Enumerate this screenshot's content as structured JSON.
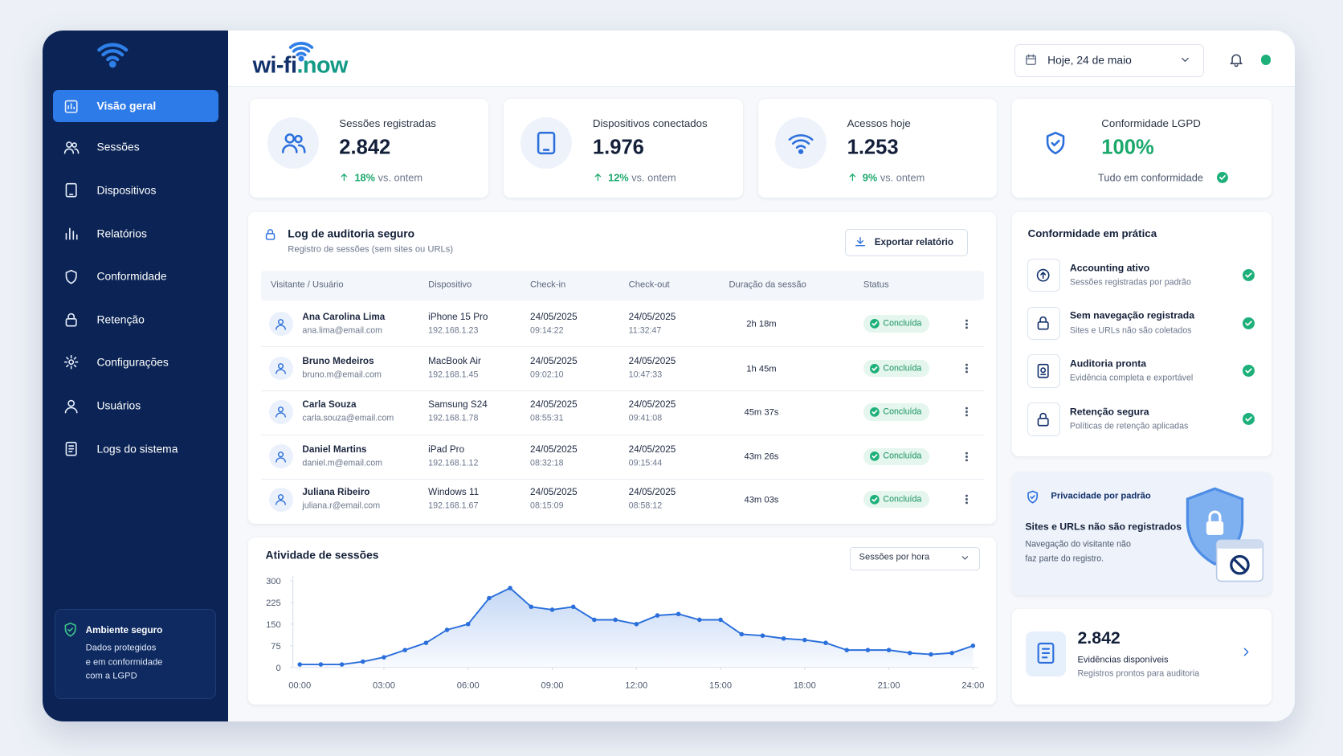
{
  "brand": {
    "logo_main": "wi-fi",
    "logo_accent": ".now"
  },
  "topbar": {
    "date": "Hoje, 24 de maio"
  },
  "sidebar": {
    "nav": [
      "Visão geral",
      "Sessões",
      "Dispositivos",
      "Relatórios",
      "Conformidade",
      "Retenção",
      "Configurações",
      "Usuários",
      "Logs do sistema"
    ],
    "secure_box": {
      "title": "Ambiente seguro",
      "lines": [
        "Dados protegidos",
        "e em conformidade",
        "com a LGPD"
      ]
    }
  },
  "stats": [
    {
      "label": "Sessões registradas",
      "value": "2.842",
      "change": "18%",
      "change_note": "vs. ontem"
    },
    {
      "label": "Dispositivos conectados",
      "value": "1.976",
      "change": "12%",
      "change_note": "vs. ontem"
    },
    {
      "label": "Acessos hoje",
      "value": "1.253",
      "change": "9%",
      "change_note": "vs. ontem"
    },
    {
      "label": "Conformidade LGPD",
      "value": "100%",
      "note": "Tudo em conformidade"
    }
  ],
  "audit_log": {
    "title": "Log de auditoria seguro",
    "subtitle": "Registro de sessões (sem sites ou URLs)",
    "export_button": "Exportar relatório",
    "columns": [
      "Visitante / Usuário",
      "Dispositivo",
      "Check-in",
      "Check-out",
      "Duração da sessão",
      "Status"
    ],
    "rows": [
      {
        "name": "Ana Carolina Lima",
        "email": "ana.lima@email.com",
        "device": "iPhone 15 Pro",
        "ip": "192.168.1.23",
        "checkin_date": "24/05/2025",
        "checkin_time": "09:14:22",
        "checkout_date": "24/05/2025",
        "checkout_time": "11:32:47",
        "duration": "2h 18m",
        "status": "Concluída"
      },
      {
        "name": "Bruno Medeiros",
        "email": "bruno.m@email.com",
        "device": "MacBook Air",
        "ip": "192.168.1.45",
        "checkin_date": "24/05/2025",
        "checkin_time": "09:02:10",
        "checkout_date": "24/05/2025",
        "checkout_time": "10:47:33",
        "duration": "1h 45m",
        "status": "Concluída"
      },
      {
        "name": "Carla Souza",
        "email": "carla.souza@email.com",
        "device": "Samsung S24",
        "ip": "192.168.1.78",
        "checkin_date": "24/05/2025",
        "checkin_time": "08:55:31",
        "checkout_date": "24/05/2025",
        "checkout_time": "09:41:08",
        "duration": "45m 37s",
        "status": "Concluída"
      },
      {
        "name": "Daniel Martins",
        "email": "daniel.m@email.com",
        "device": "iPad Pro",
        "ip": "192.168.1.12",
        "checkin_date": "24/05/2025",
        "checkin_time": "08:32:18",
        "checkout_date": "24/05/2025",
        "checkout_time": "09:15:44",
        "duration": "43m 26s",
        "status": "Concluída"
      },
      {
        "name": "Juliana Ribeiro",
        "email": "juliana.r@email.com",
        "device": "Windows 11",
        "ip": "192.168.1.67",
        "checkin_date": "24/05/2025",
        "checkin_time": "08:15:09",
        "checkout_date": "24/05/2025",
        "checkout_time": "08:58:12",
        "duration": "43m 03s",
        "status": "Concluída"
      }
    ]
  },
  "activity_chart": {
    "type": "line",
    "title": "Atividade de sessões",
    "selector": "Sessões por hora",
    "color": "#2a6fdb",
    "x": [
      0,
      0.75,
      1.5,
      2.25,
      3,
      3.75,
      4.5,
      5.25,
      6,
      6.75,
      7.5,
      8.25,
      9,
      9.75,
      10.5,
      11.25,
      12,
      12.75,
      13.5,
      14.25,
      15,
      15.75,
      16.5,
      17.25,
      18,
      18.75,
      19.5,
      20.25,
      21,
      21.75,
      22.5,
      23.25,
      24
    ],
    "values": [
      10,
      10,
      10,
      20,
      35,
      60,
      85,
      130,
      150,
      240,
      275,
      210,
      200,
      210,
      165,
      165,
      150,
      180,
      185,
      165,
      165,
      115,
      110,
      100,
      95,
      85,
      60,
      60,
      60,
      50,
      45,
      50,
      75
    ],
    "xlim": [
      0,
      24
    ],
    "xticks": [
      {
        "value": 0,
        "label": "00:00"
      },
      {
        "value": 3,
        "label": "03:00"
      },
      {
        "value": 6,
        "label": "06:00"
      },
      {
        "value": 9,
        "label": "09:00"
      },
      {
        "value": 12,
        "label": "12:00"
      },
      {
        "value": 15,
        "label": "15:00"
      },
      {
        "value": 18,
        "label": "18:00"
      },
      {
        "value": 21,
        "label": "21:00"
      },
      {
        "value": 24,
        "label": "24:00"
      }
    ],
    "ylim": [
      0,
      300
    ],
    "yticks": [
      0,
      75,
      150,
      225,
      300
    ]
  },
  "compliance": {
    "title": "Conformidade em prática",
    "items": [
      {
        "title": "Accounting ativo",
        "subtitle": "Sessões registradas por padrão"
      },
      {
        "title": "Sem navegação registrada",
        "subtitle": "Sites e URLs não são coletados"
      },
      {
        "title": "Auditoria pronta",
        "subtitle": "Evidência completa e exportável"
      },
      {
        "title": "Retenção segura",
        "subtitle": "Políticas de retenção aplicadas"
      }
    ]
  },
  "privacy": {
    "title": "Privacidade por padrão",
    "heading": "Sites e URLs não são registrados",
    "lines": [
      "Navegação do visitante não",
      "faz parte do registro."
    ]
  },
  "evidence": {
    "value": "2.842",
    "title": "Evidências disponíveis",
    "subtitle": "Registros prontos para auditoria"
  }
}
